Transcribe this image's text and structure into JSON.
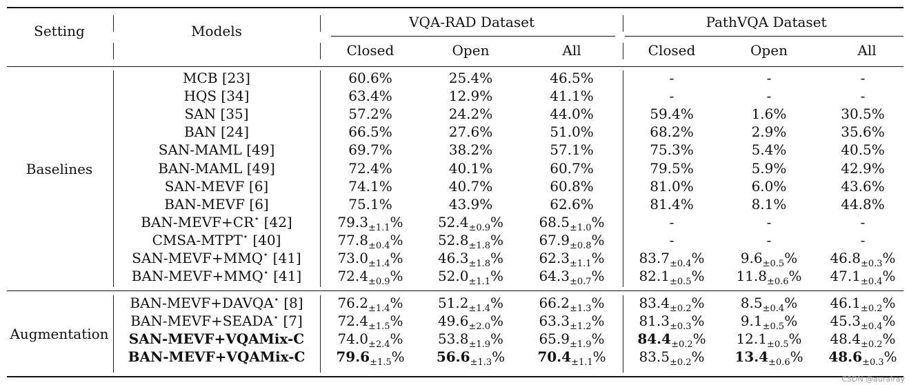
{
  "header": {
    "setting": "Setting",
    "models": "Models",
    "vqa_rad": "VQA-RAD Dataset",
    "pathvqa": "PathVQA Dataset",
    "closed": "Closed",
    "open": "Open",
    "all": "All"
  },
  "groups": [
    {
      "label": "Baselines",
      "rows": [
        {
          "model": "MCB [23]",
          "star": false,
          "bold": false,
          "vr": [
            {
              "v": "60.6",
              "pm": ""
            },
            {
              "v": "25.4",
              "pm": ""
            },
            {
              "v": "46.5",
              "pm": ""
            }
          ],
          "pv": [
            {
              "v": "-",
              "pm": ""
            },
            {
              "v": "-",
              "pm": ""
            },
            {
              "v": "-",
              "pm": ""
            }
          ]
        },
        {
          "model": "HQS [34]",
          "star": false,
          "bold": false,
          "vr": [
            {
              "v": "63.4",
              "pm": ""
            },
            {
              "v": "12.9",
              "pm": ""
            },
            {
              "v": "41.1",
              "pm": ""
            }
          ],
          "pv": [
            {
              "v": "-",
              "pm": ""
            },
            {
              "v": "-",
              "pm": ""
            },
            {
              "v": "-",
              "pm": ""
            }
          ]
        },
        {
          "model": "SAN [35]",
          "star": false,
          "bold": false,
          "vr": [
            {
              "v": "57.2",
              "pm": ""
            },
            {
              "v": "24.2",
              "pm": ""
            },
            {
              "v": "44.0",
              "pm": ""
            }
          ],
          "pv": [
            {
              "v": "59.4",
              "pm": ""
            },
            {
              "v": "1.6",
              "pm": ""
            },
            {
              "v": "30.5",
              "pm": ""
            }
          ]
        },
        {
          "model": "BAN [24]",
          "star": false,
          "bold": false,
          "vr": [
            {
              "v": "66.5",
              "pm": ""
            },
            {
              "v": "27.6",
              "pm": ""
            },
            {
              "v": "51.0",
              "pm": ""
            }
          ],
          "pv": [
            {
              "v": "68.2",
              "pm": ""
            },
            {
              "v": "2.9",
              "pm": ""
            },
            {
              "v": "35.6",
              "pm": ""
            }
          ]
        },
        {
          "model": "SAN-MAML [49]",
          "star": false,
          "bold": false,
          "vr": [
            {
              "v": "69.7",
              "pm": ""
            },
            {
              "v": "38.2",
              "pm": ""
            },
            {
              "v": "57.1",
              "pm": ""
            }
          ],
          "pv": [
            {
              "v": "75.3",
              "pm": ""
            },
            {
              "v": "5.4",
              "pm": ""
            },
            {
              "v": "40.5",
              "pm": ""
            }
          ]
        },
        {
          "model": "BAN-MAML [49]",
          "star": false,
          "bold": false,
          "vr": [
            {
              "v": "72.4",
              "pm": ""
            },
            {
              "v": "40.1",
              "pm": ""
            },
            {
              "v": "60.7",
              "pm": ""
            }
          ],
          "pv": [
            {
              "v": "79.5",
              "pm": ""
            },
            {
              "v": "5.9",
              "pm": ""
            },
            {
              "v": "42.9",
              "pm": ""
            }
          ]
        },
        {
          "model": "SAN-MEVF [6]",
          "star": false,
          "bold": false,
          "vr": [
            {
              "v": "74.1",
              "pm": ""
            },
            {
              "v": "40.7",
              "pm": ""
            },
            {
              "v": "60.8",
              "pm": ""
            }
          ],
          "pv": [
            {
              "v": "81.0",
              "pm": ""
            },
            {
              "v": "6.0",
              "pm": ""
            },
            {
              "v": "43.6",
              "pm": ""
            }
          ]
        },
        {
          "model": "BAN-MEVF [6]",
          "star": false,
          "bold": false,
          "vr": [
            {
              "v": "75.1",
              "pm": ""
            },
            {
              "v": "43.9",
              "pm": ""
            },
            {
              "v": "62.6",
              "pm": ""
            }
          ],
          "pv": [
            {
              "v": "81.4",
              "pm": ""
            },
            {
              "v": "8.1",
              "pm": ""
            },
            {
              "v": "44.8",
              "pm": ""
            }
          ]
        },
        {
          "model": "BAN-MEVF+CR",
          "ref": "[42]",
          "star": true,
          "bold": false,
          "vr": [
            {
              "v": "79.3",
              "pm": "±1.1"
            },
            {
              "v": "52.4",
              "pm": "±0.9"
            },
            {
              "v": "68.5",
              "pm": "±1.0"
            }
          ],
          "pv": [
            {
              "v": "-",
              "pm": ""
            },
            {
              "v": "-",
              "pm": ""
            },
            {
              "v": "-",
              "pm": ""
            }
          ]
        },
        {
          "model": "CMSA-MTPT",
          "ref": "[40]",
          "star": true,
          "bold": false,
          "vr": [
            {
              "v": "77.8",
              "pm": "±0.4"
            },
            {
              "v": "52.8",
              "pm": "±1.8"
            },
            {
              "v": "67.9",
              "pm": "±0.8"
            }
          ],
          "pv": [
            {
              "v": "-",
              "pm": ""
            },
            {
              "v": "-",
              "pm": ""
            },
            {
              "v": "-",
              "pm": ""
            }
          ]
        },
        {
          "model": "SAN-MEVF+MMQ",
          "ref": "[41]",
          "star": true,
          "bold": false,
          "vr": [
            {
              "v": "73.0",
              "pm": "±1.4"
            },
            {
              "v": "46.3",
              "pm": "±1.8"
            },
            {
              "v": "62.3",
              "pm": "±1.1"
            }
          ],
          "pv": [
            {
              "v": "83.7",
              "pm": "±0.4"
            },
            {
              "v": "9.6",
              "pm": "±0.5"
            },
            {
              "v": "46.8",
              "pm": "±0.3"
            }
          ]
        },
        {
          "model": "BAN-MEVF+MMQ",
          "ref": "[41]",
          "star": true,
          "bold": false,
          "vr": [
            {
              "v": "72.4",
              "pm": "±0.9"
            },
            {
              "v": "52.0",
              "pm": "±1.1"
            },
            {
              "v": "64.3",
              "pm": "±0.7"
            }
          ],
          "pv": [
            {
              "v": "82.1",
              "pm": "±0.5"
            },
            {
              "v": "11.8",
              "pm": "±0.6"
            },
            {
              "v": "47.1",
              "pm": "±0.4"
            }
          ]
        }
      ]
    },
    {
      "label": "Augmentation",
      "rows": [
        {
          "model": "BAN-MEVF+DAVQA",
          "ref": "[8]",
          "star": true,
          "bold": false,
          "vr": [
            {
              "v": "76.2",
              "pm": "±1.4"
            },
            {
              "v": "51.2",
              "pm": "±1.4"
            },
            {
              "v": "66.2",
              "pm": "±1.3"
            }
          ],
          "pv": [
            {
              "v": "83.4",
              "pm": "±0.2"
            },
            {
              "v": "8.5",
              "pm": "±0.4"
            },
            {
              "v": "46.1",
              "pm": "±0.2"
            }
          ]
        },
        {
          "model": "BAN-MEVF+SEADA",
          "ref": "[7]",
          "star": true,
          "bold": false,
          "vr": [
            {
              "v": "72.4",
              "pm": "±1.5"
            },
            {
              "v": "49.6",
              "pm": "±2.0"
            },
            {
              "v": "63.3",
              "pm": "±1.2"
            }
          ],
          "pv": [
            {
              "v": "81.3",
              "pm": "±0.3"
            },
            {
              "v": "9.1",
              "pm": "±0.5"
            },
            {
              "v": "45.3",
              "pm": "±0.4"
            }
          ]
        },
        {
          "model": "SAN-MEVF+VQAMix-C",
          "star": false,
          "bold": true,
          "vr": [
            {
              "v": "74.0",
              "pm": "±2.4"
            },
            {
              "v": "53.8",
              "pm": "±1.9"
            },
            {
              "v": "65.9",
              "pm": "±1.9"
            }
          ],
          "pv": [
            {
              "v": "84.4",
              "pm": "±0.2",
              "b": true
            },
            {
              "v": "12.1",
              "pm": "±0.5"
            },
            {
              "v": "48.4",
              "pm": "±0.2"
            }
          ]
        },
        {
          "model": "BAN-MEVF+VQAMix-C",
          "star": false,
          "bold": true,
          "vr": [
            {
              "v": "79.6",
              "pm": "±1.5",
              "b": true
            },
            {
              "v": "56.6",
              "pm": "±1.3",
              "b": true
            },
            {
              "v": "70.4",
              "pm": "±1.1",
              "b": true
            }
          ],
          "pv": [
            {
              "v": "83.5",
              "pm": "±0.2"
            },
            {
              "v": "13.4",
              "pm": "±0.6",
              "b": true
            },
            {
              "v": "48.6",
              "pm": "±0.3",
              "b": true
            }
          ]
        }
      ]
    }
  ],
  "watermark": "CSDN @auralray"
}
